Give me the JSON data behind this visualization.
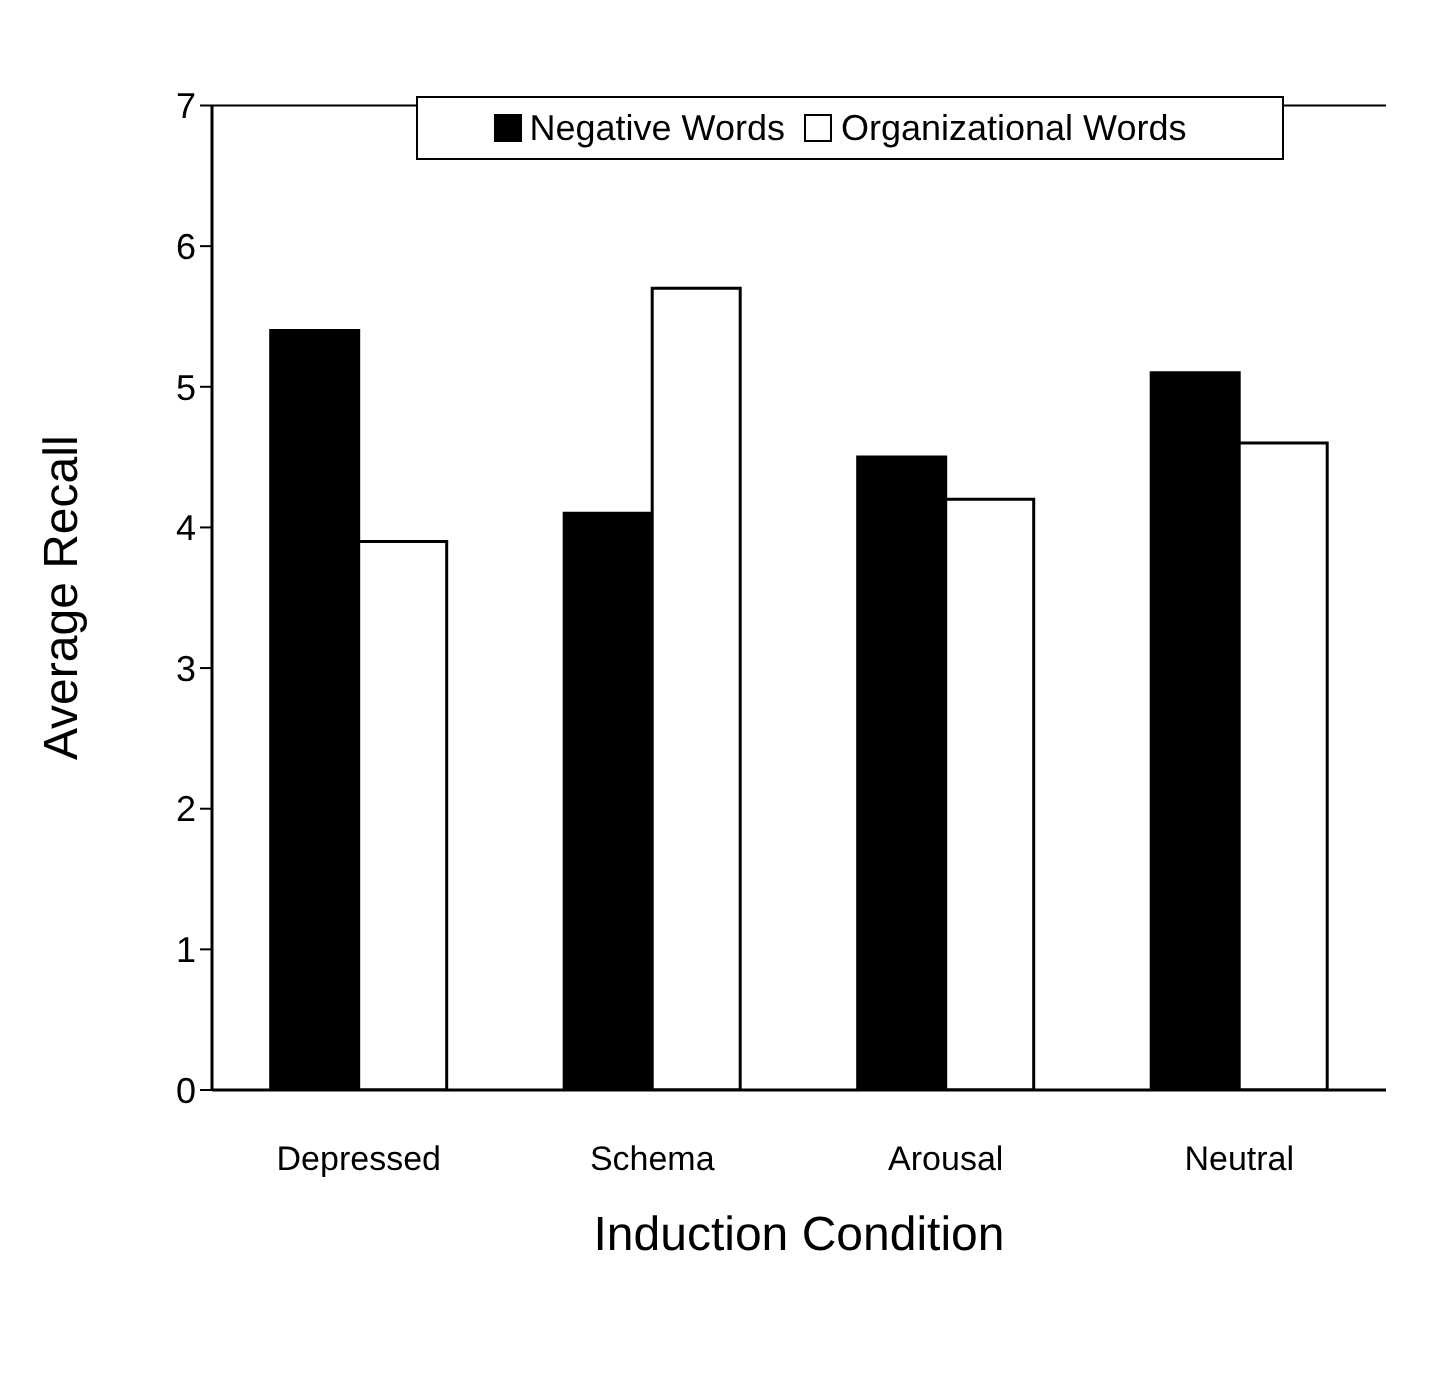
{
  "chart_data": {
    "type": "bar",
    "xlabel": "Induction Condition",
    "ylabel": "Average Recall",
    "categories": [
      "Depressed",
      "Schema",
      "Arousal",
      "Neutral"
    ],
    "series": [
      {
        "name": "Negative Words",
        "color": "#000000",
        "values": [
          5.4,
          4.1,
          4.5,
          5.1
        ]
      },
      {
        "name": "Organizational Words",
        "color": "#ffffff",
        "values": [
          3.9,
          5.7,
          4.2,
          4.6
        ]
      }
    ],
    "ylim": [
      0,
      7
    ],
    "yticks": [
      0,
      1,
      2,
      3,
      4,
      5,
      6,
      7
    ],
    "grid": false,
    "legend": "top"
  }
}
